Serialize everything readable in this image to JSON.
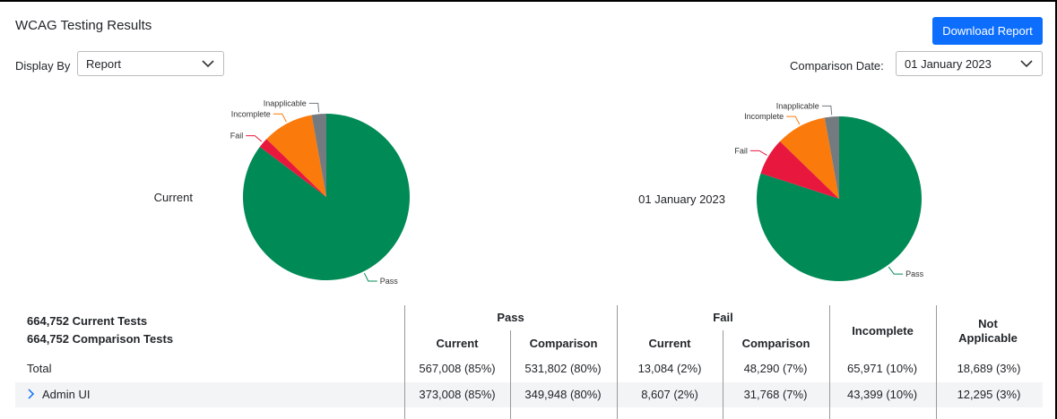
{
  "header": {
    "title": "WCAG Testing Results",
    "download_button": "Download Report"
  },
  "controls": {
    "display_by_label": "Display By",
    "display_by_value": "Report",
    "comparison_date_label": "Comparison Date:",
    "comparison_date_value": "01 January 2023"
  },
  "pies": [
    {
      "caption": "Current",
      "slices": [
        {
          "label": "Pass",
          "value": 567008,
          "color": "#008a55"
        },
        {
          "label": "Fail",
          "value": 13084,
          "color": "#e8173e"
        },
        {
          "label": "Incomplete",
          "value": 65971,
          "color": "#fb7a0c"
        },
        {
          "label": "Inapplicable",
          "value": 18689,
          "color": "#737a80"
        }
      ]
    },
    {
      "caption": "01 January 2023",
      "slices": [
        {
          "label": "Pass",
          "value": 531802,
          "color": "#008a55"
        },
        {
          "label": "Fail",
          "value": 48290,
          "color": "#e8173e"
        },
        {
          "label": "Incomplete",
          "value": 65971,
          "color": "#fb7a0c"
        },
        {
          "label": "Inapplicable",
          "value": 18689,
          "color": "#737a80"
        }
      ]
    }
  ],
  "table": {
    "summary": [
      "664,752 Current Tests",
      "664,752 Comparison Tests"
    ],
    "groups": [
      "Pass",
      "Fail",
      "Incomplete",
      "Not Applicable"
    ],
    "subheaders": [
      "Current",
      "Comparison",
      "Current",
      "Comparison"
    ],
    "rows": [
      {
        "label": "Total",
        "cells": [
          "567,008 (85%)",
          "531,802 (80%)",
          "13,084 (2%)",
          "48,290 (7%)",
          "65,971 (10%)",
          "18,689 (3%)"
        ]
      },
      {
        "label": "Admin UI",
        "cells": [
          "373,008 (85%)",
          "349,948 (80%)",
          "8,607 (2%)",
          "31,768 (7%)",
          "43,399 (10%)",
          "12,295 (3%)"
        ]
      }
    ]
  }
}
